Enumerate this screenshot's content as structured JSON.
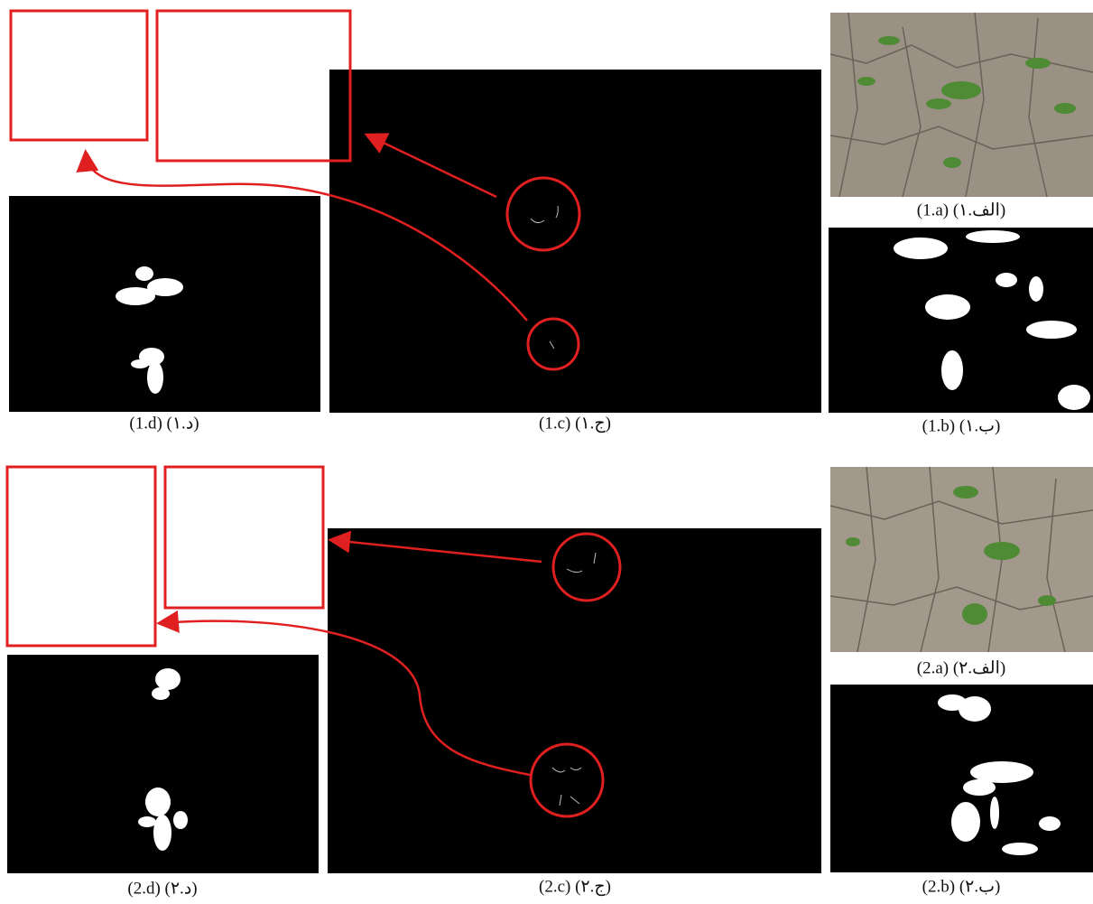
{
  "rows": [
    {
      "captions": {
        "a": "(1.a) (۱.الف)",
        "b": "(1.b) (۱.ب)",
        "c": "(1.c) (۱.ج)",
        "d": "(1.d) (۱.د)"
      }
    },
    {
      "captions": {
        "a": "(2.a) (۲.الف)",
        "b": "(2.b) (۲.ب)",
        "c": "(2.c) (۲.ج)",
        "d": "(2.d) (۲.د)"
      }
    }
  ]
}
